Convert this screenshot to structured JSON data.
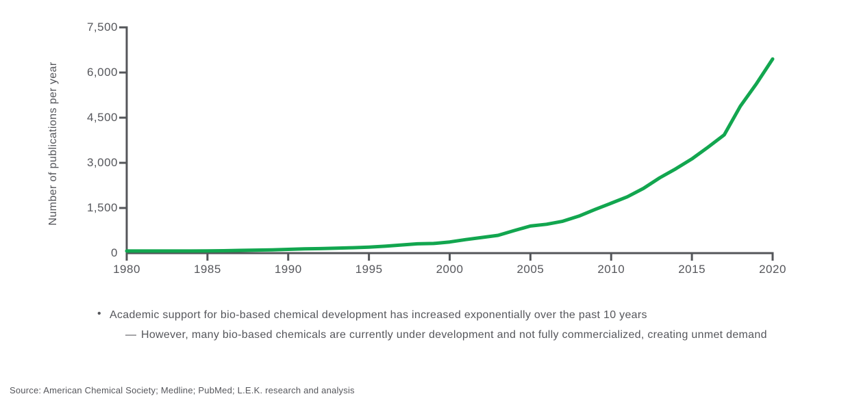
{
  "chart_data": {
    "type": "line",
    "title": "",
    "xlabel": "",
    "ylabel": "Number of publications per year",
    "series_name": "Number of publications per year",
    "x": [
      1980,
      1981,
      1982,
      1983,
      1984,
      1985,
      1986,
      1987,
      1988,
      1989,
      1990,
      1991,
      1992,
      1993,
      1994,
      1995,
      1996,
      1997,
      1998,
      1999,
      2000,
      2001,
      2002,
      2003,
      2004,
      2005,
      2006,
      2007,
      2008,
      2009,
      2010,
      2011,
      2012,
      2013,
      2014,
      2015,
      2016,
      2017,
      2018,
      2019,
      2020
    ],
    "values": [
      70,
      70,
      70,
      70,
      70,
      75,
      80,
      90,
      100,
      110,
      125,
      140,
      150,
      165,
      180,
      200,
      230,
      270,
      310,
      320,
      370,
      450,
      520,
      590,
      750,
      900,
      960,
      1060,
      1230,
      1450,
      1660,
      1870,
      2150,
      2500,
      2800,
      3130,
      3520,
      3930,
      4880,
      5630,
      6450
    ],
    "xlim": [
      1980,
      2020
    ],
    "ylim": [
      0,
      7500
    ],
    "x_tick_labels": [
      "1980",
      "1985",
      "1990",
      "1995",
      "2000",
      "2005",
      "2010",
      "2015",
      "2020"
    ],
    "y_tick_labels": [
      "0",
      "1,500",
      "3,000",
      "4,500",
      "6,000",
      "7,500"
    ],
    "grid": false,
    "legend": false,
    "line_color": "#12A64F",
    "axis_color": "#54565A",
    "label_color": "#55565B"
  },
  "notes": {
    "bullet_marker": "•",
    "bullet_text": "Academic support for bio-based chemical development has increased exponentially over the past 10 years",
    "sub_bullet_marker": "—",
    "sub_bullet_text": "However, many bio-based chemicals are currently under development and not fully commercialized, creating unmet demand"
  },
  "footer": {
    "source": "Source: American Chemical Society; Medline; PubMed; L.E.K. research and analysis"
  }
}
